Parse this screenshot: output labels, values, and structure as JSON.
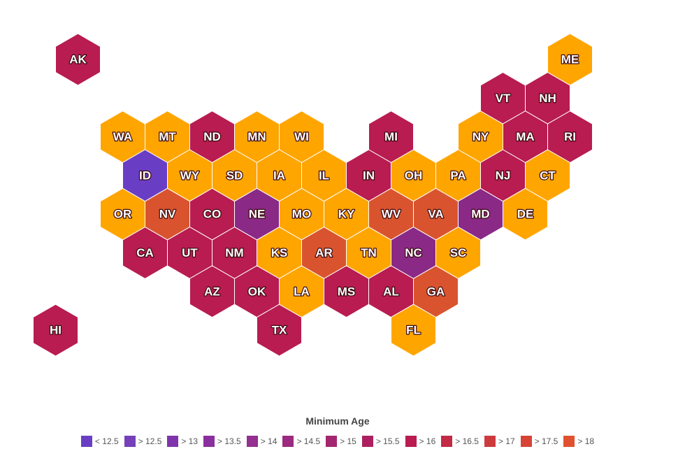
{
  "states": [
    {
      "label": "AK",
      "color": "#b81c51"
    },
    {
      "label": "ME",
      "color": "#ffa500"
    },
    {
      "label": "VT",
      "color": "#b81c51"
    },
    {
      "label": "NH",
      "color": "#b81c51"
    },
    {
      "label": "WA",
      "color": "#ffa500"
    },
    {
      "label": "MT",
      "color": "#ffa500"
    },
    {
      "label": "ND",
      "color": "#b81c51"
    },
    {
      "label": "MN",
      "color": "#ffa500"
    },
    {
      "label": "WI",
      "color": "#ffa500"
    },
    {
      "label": "MI",
      "color": "#b81c51"
    },
    {
      "label": "NY",
      "color": "#ffa500"
    },
    {
      "label": "MA",
      "color": "#b81c51"
    },
    {
      "label": "RI",
      "color": "#b81c51"
    },
    {
      "label": "ID",
      "color": "#6a3ec4"
    },
    {
      "label": "WY",
      "color": "#ffa500"
    },
    {
      "label": "SD",
      "color": "#ffa500"
    },
    {
      "label": "IA",
      "color": "#ffa500"
    },
    {
      "label": "IL",
      "color": "#ffa500"
    },
    {
      "label": "IN",
      "color": "#b81c51"
    },
    {
      "label": "OH",
      "color": "#ffa500"
    },
    {
      "label": "PA",
      "color": "#ffa500"
    },
    {
      "label": "NJ",
      "color": "#b81c51"
    },
    {
      "label": "CT",
      "color": "#ffa500"
    },
    {
      "label": "OR",
      "color": "#ffa500"
    },
    {
      "label": "NV",
      "color": "#d9542e"
    },
    {
      "label": "CO",
      "color": "#b81c51"
    },
    {
      "label": "NE",
      "color": "#8a2a86"
    },
    {
      "label": "MO",
      "color": "#ffa500"
    },
    {
      "label": "KY",
      "color": "#ffa500"
    },
    {
      "label": "WV",
      "color": "#d9542e"
    },
    {
      "label": "VA",
      "color": "#d9542e"
    },
    {
      "label": "MD",
      "color": "#8a2a86"
    },
    {
      "label": "DE",
      "color": "#ffa500"
    },
    {
      "label": "CA",
      "color": "#b81c51"
    },
    {
      "label": "UT",
      "color": "#b81c51"
    },
    {
      "label": "NM",
      "color": "#b81c51"
    },
    {
      "label": "KS",
      "color": "#ffa500"
    },
    {
      "label": "AR",
      "color": "#d9542e"
    },
    {
      "label": "TN",
      "color": "#ffa500"
    },
    {
      "label": "NC",
      "color": "#8a2a86"
    },
    {
      "label": "SC",
      "color": "#ffa500"
    },
    {
      "label": "AZ",
      "color": "#b81c51"
    },
    {
      "label": "OK",
      "color": "#b81c51"
    },
    {
      "label": "LA",
      "color": "#ffa500"
    },
    {
      "label": "MS",
      "color": "#b81c51"
    },
    {
      "label": "AL",
      "color": "#b81c51"
    },
    {
      "label": "GA",
      "color": "#d9542e"
    },
    {
      "label": "HI",
      "color": "#b81c51"
    },
    {
      "label": "TX",
      "color": "#b81c51"
    },
    {
      "label": "FL",
      "color": "#ffa500"
    }
  ],
  "legend": {
    "title": "Minimum Age",
    "items": [
      {
        "label": "< 12.5",
        "color": "#6a3ec4"
      },
      {
        "label": "> 12.5",
        "color": "#7540b8"
      },
      {
        "label": "> 13",
        "color": "#8034ab"
      },
      {
        "label": "> 13.5",
        "color": "#8a2f9e"
      },
      {
        "label": "> 14",
        "color": "#933090"
      },
      {
        "label": "> 14.5",
        "color": "#9c2a80"
      },
      {
        "label": "> 15",
        "color": "#a52670"
      },
      {
        "label": "> 15.5",
        "color": "#ad2060"
      },
      {
        "label": "> 16",
        "color": "#b81c51"
      },
      {
        "label": "> 16.5",
        "color": "#c22a45"
      },
      {
        "label": "> 17",
        "color": "#cc3a3e"
      },
      {
        "label": "> 17.5",
        "color": "#d74436"
      },
      {
        "label": "> 18",
        "color": "#e0522f"
      }
    ]
  }
}
